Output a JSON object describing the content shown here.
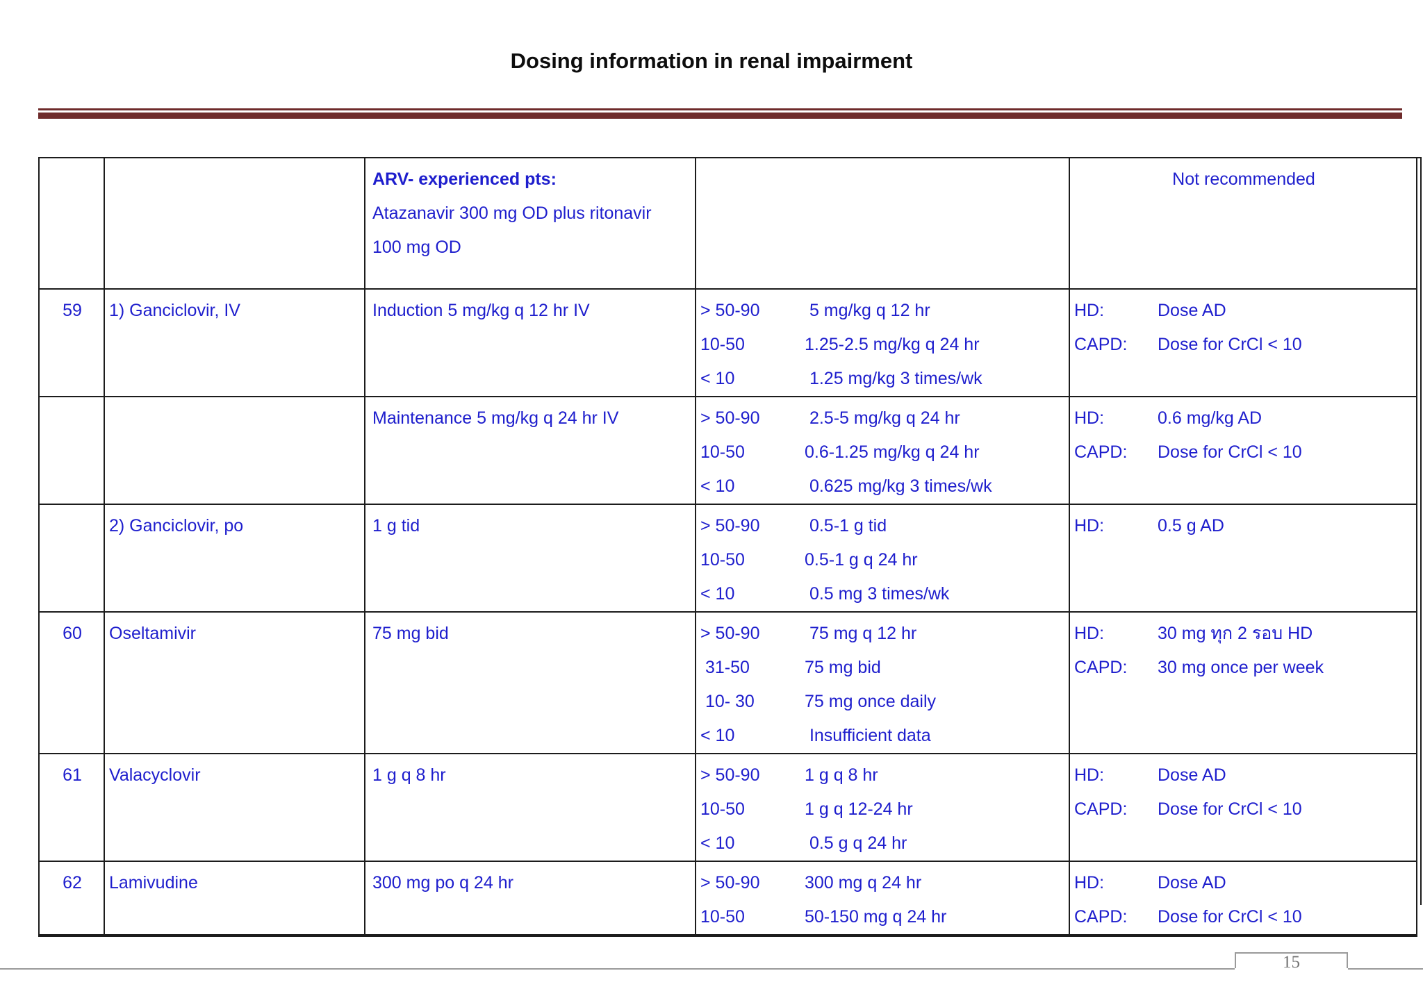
{
  "title": "Dosing information in renal impairment",
  "page_number": "15",
  "colors": {
    "text_blue": "#1e1ecd",
    "rule_maroon": "#6e2b2b",
    "border_black": "#1c1c1c",
    "footer_line_gray": "#9a9a9a",
    "page_number_gray": "#737373",
    "title_black": "#0d0d0d"
  },
  "table": {
    "rows": [
      {
        "no": "",
        "drug": "",
        "dose": [
          {
            "text": "ARV- experienced pts:",
            "bold": true
          },
          {
            "text": "Atazanavir 300 mg OD plus ritonavir",
            "bold": false
          },
          {
            "text": "100 mg OD",
            "bold": false
          }
        ],
        "crcl": [],
        "dialysis": [],
        "note": "Not recommended"
      },
      {
        "no": "59",
        "drug": "1) Ganciclovir, IV",
        "dose": [
          {
            "text": "Induction 5 mg/kg q 12 hr IV",
            "bold": false
          }
        ],
        "crcl": [
          [
            "> 50-90",
            " 5 mg/kg q 12 hr"
          ],
          [
            "10-50",
            "1.25-2.5 mg/kg q 24 hr"
          ],
          [
            "< 10",
            " 1.25 mg/kg 3 times/wk"
          ]
        ],
        "dialysis": [
          [
            "HD:",
            "Dose AD"
          ],
          [
            "CAPD:",
            "Dose for CrCl < 10"
          ]
        ],
        "note": ""
      },
      {
        "no": "",
        "drug": "",
        "dose": [
          {
            "text": "Maintenance 5 mg/kg q 24 hr IV",
            "bold": false
          }
        ],
        "crcl": [
          [
            "> 50-90",
            " 2.5-5 mg/kg q 24 hr"
          ],
          [
            "10-50",
            "0.6-1.25 mg/kg q 24 hr"
          ],
          [
            "< 10",
            " 0.625 mg/kg 3 times/wk"
          ]
        ],
        "dialysis": [
          [
            "HD:",
            "0.6 mg/kg AD"
          ],
          [
            "CAPD:",
            "Dose for CrCl < 10"
          ]
        ],
        "note": ""
      },
      {
        "no": "",
        "drug": "2) Ganciclovir, po",
        "dose": [
          {
            "text": "1 g tid",
            "bold": false
          }
        ],
        "crcl": [
          [
            "> 50-90",
            " 0.5-1 g tid"
          ],
          [
            "10-50",
            "0.5-1 g q 24 hr"
          ],
          [
            "< 10",
            " 0.5 mg 3 times/wk"
          ]
        ],
        "dialysis": [
          [
            "HD:",
            "0.5 g AD"
          ]
        ],
        "note": ""
      },
      {
        "no": "60",
        "drug": "Oseltamivir",
        "dose": [
          {
            "text": "75 mg bid",
            "bold": false
          }
        ],
        "crcl": [
          [
            "> 50-90",
            " 75 mg q 12 hr"
          ],
          [
            " 31-50",
            "75 mg bid"
          ],
          [
            " 10- 30",
            "75 mg once daily"
          ],
          [
            "< 10",
            " Insufficient data"
          ]
        ],
        "dialysis": [
          [
            "HD:",
            "30 mg ทุก 2 รอบ HD"
          ],
          [
            "CAPD:",
            "30 mg once per week"
          ]
        ],
        "note": ""
      },
      {
        "no": "61",
        "drug": "Valacyclovir",
        "dose": [
          {
            "text": "1 g q 8 hr",
            "bold": false
          }
        ],
        "crcl": [
          [
            "> 50-90",
            "1 g q 8 hr"
          ],
          [
            "10-50",
            "1 g q 12-24 hr"
          ],
          [
            "< 10",
            " 0.5 g q 24 hr"
          ]
        ],
        "dialysis": [
          [
            "HD:",
            "Dose AD"
          ],
          [
            "CAPD:",
            "Dose for CrCl < 10"
          ]
        ],
        "note": ""
      },
      {
        "no": "62",
        "drug": "Lamivudine",
        "dose": [
          {
            "text": "300 mg po q 24 hr",
            "bold": false
          }
        ],
        "crcl": [
          [
            "> 50-90",
            "300 mg q 24 hr"
          ],
          [
            "10-50",
            "50-150 mg q 24 hr"
          ]
        ],
        "dialysis": [
          [
            "HD:",
            "Dose AD"
          ],
          [
            "CAPD:",
            "Dose for CrCl < 10"
          ]
        ],
        "note": ""
      }
    ]
  }
}
